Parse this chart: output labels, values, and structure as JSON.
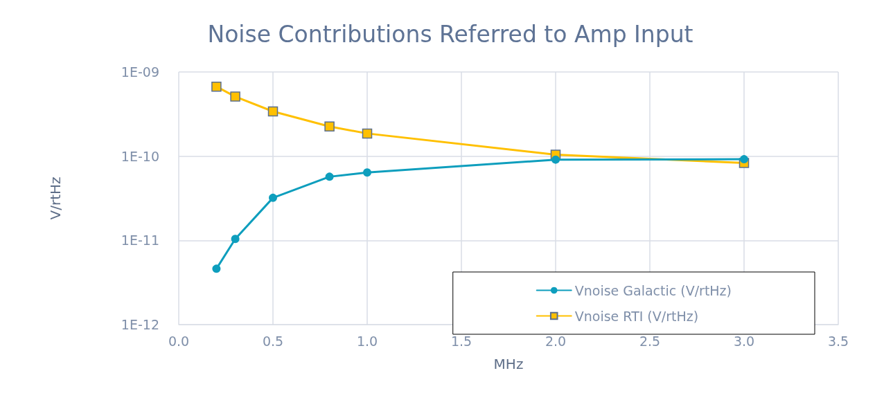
{
  "chart_data": {
    "type": "line",
    "title": "Noise Contributions Referred to Amp Input",
    "xlabel": "MHz",
    "ylabel": "V/rtHz",
    "x": [
      0.2,
      0.3,
      0.5,
      0.8,
      1.0,
      2.0,
      3.0
    ],
    "series": [
      {
        "name": "Vnoise Galactic (V/rtHz)",
        "color": "#0e9ebd",
        "marker": "circle",
        "values": [
          4.6e-12,
          1.04e-11,
          3.2e-11,
          5.7e-11,
          6.4e-11,
          9.1e-11,
          9.2e-11
        ]
      },
      {
        "name": "Vnoise RTI (V/rtHz)",
        "color": "#ffc000",
        "marker": "square",
        "values": [
          6.7e-10,
          5.1e-10,
          3.4e-10,
          2.25e-10,
          1.86e-10,
          1.04e-10,
          8.3e-11
        ]
      }
    ],
    "log": "y",
    "ylim": [
      1e-12,
      1e-09
    ],
    "yticks": [
      {
        "value": 1e-12,
        "label": "1E-12"
      },
      {
        "value": 1e-11,
        "label": "1E-11"
      },
      {
        "value": 1e-10,
        "label": "1E-10"
      },
      {
        "value": 1e-09,
        "label": "1E-09"
      }
    ],
    "xlim": [
      0,
      3.5
    ],
    "xticks": [
      {
        "value": 0,
        "label": "0.0"
      },
      {
        "value": 0.5,
        "label": "0.5"
      },
      {
        "value": 1,
        "label": "1.0"
      },
      {
        "value": 1.5,
        "label": "1.5"
      },
      {
        "value": 2,
        "label": "2.0"
      },
      {
        "value": 2.5,
        "label": "2.5"
      },
      {
        "value": 3,
        "label": "3.0"
      },
      {
        "value": 3.5,
        "label": "3.5"
      }
    ],
    "grid": true,
    "legend": "bottom right",
    "line_style": "solid"
  }
}
